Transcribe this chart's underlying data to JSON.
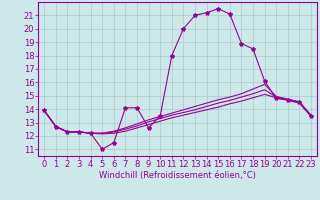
{
  "title": "",
  "xlabel": "Windchill (Refroidissement éolien,°C)",
  "bg_color": "#cce8e8",
  "grid_color": "#aacccc",
  "line_color": "#990099",
  "xlim_min": -0.5,
  "xlim_max": 23.5,
  "ylim_min": 10.5,
  "ylim_max": 22.0,
  "yticks": [
    11,
    12,
    13,
    14,
    15,
    16,
    17,
    18,
    19,
    20,
    21
  ],
  "xticks": [
    0,
    1,
    2,
    3,
    4,
    5,
    6,
    7,
    8,
    9,
    10,
    11,
    12,
    13,
    14,
    15,
    16,
    17,
    18,
    19,
    20,
    21,
    22,
    23
  ],
  "line1_x": [
    0,
    1,
    2,
    3,
    4,
    5,
    6,
    7,
    8,
    9,
    10,
    11,
    12,
    13,
    14,
    15,
    16,
    17,
    18,
    19,
    20,
    21,
    22,
    23
  ],
  "line1_y": [
    13.9,
    12.7,
    12.3,
    12.3,
    12.2,
    11.0,
    11.5,
    14.1,
    14.1,
    12.6,
    13.5,
    18.0,
    20.0,
    21.0,
    21.2,
    21.5,
    21.1,
    18.9,
    18.5,
    16.1,
    14.8,
    14.7,
    14.5,
    13.5
  ],
  "line2_x": [
    0,
    1,
    2,
    3,
    4,
    5,
    6,
    7,
    8,
    9,
    10,
    11,
    12,
    13,
    14,
    15,
    16,
    17,
    18,
    19,
    20,
    21,
    22,
    23
  ],
  "line2_y": [
    13.9,
    12.7,
    12.3,
    12.3,
    12.2,
    12.15,
    12.2,
    12.35,
    12.6,
    12.85,
    13.1,
    13.35,
    13.55,
    13.75,
    13.95,
    14.15,
    14.4,
    14.6,
    14.85,
    15.1,
    14.85,
    14.65,
    14.45,
    13.45
  ],
  "line3_x": [
    0,
    1,
    2,
    3,
    4,
    5,
    6,
    7,
    8,
    9,
    10,
    11,
    12,
    13,
    14,
    15,
    16,
    17,
    18,
    19,
    20,
    21,
    22,
    23
  ],
  "line3_y": [
    13.9,
    12.7,
    12.3,
    12.3,
    12.2,
    12.2,
    12.3,
    12.5,
    12.75,
    13.05,
    13.3,
    13.55,
    13.75,
    13.95,
    14.2,
    14.45,
    14.65,
    14.9,
    15.15,
    15.45,
    14.9,
    14.7,
    14.5,
    13.5
  ],
  "line4_x": [
    0,
    1,
    2,
    3,
    4,
    5,
    6,
    7,
    8,
    9,
    10,
    11,
    12,
    13,
    14,
    15,
    16,
    17,
    18,
    19,
    20,
    21,
    22,
    23
  ],
  "line4_y": [
    13.9,
    12.7,
    12.3,
    12.3,
    12.2,
    12.2,
    12.35,
    12.6,
    12.9,
    13.2,
    13.45,
    13.7,
    13.95,
    14.2,
    14.45,
    14.7,
    14.9,
    15.15,
    15.5,
    15.85,
    14.95,
    14.75,
    14.55,
    13.55
  ],
  "xlabel_fontsize": 6,
  "tick_fontsize": 6
}
